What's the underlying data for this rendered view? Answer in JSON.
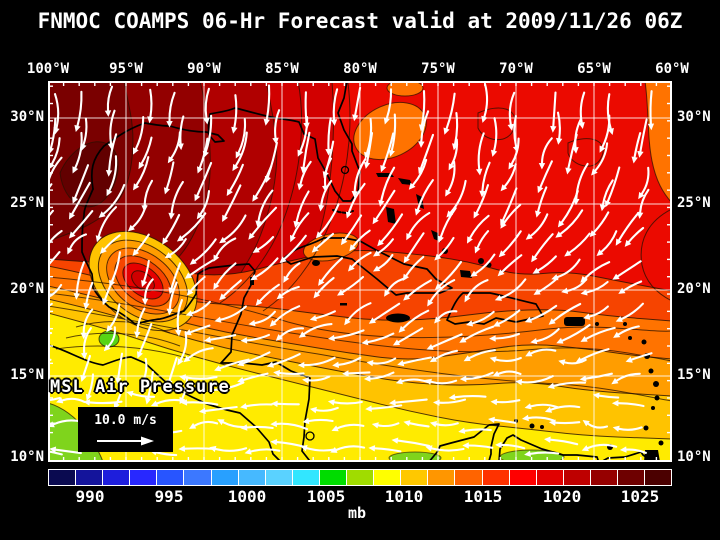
{
  "title": "FNMOC COAMPS 06-Hr Forecast valid at 2009/11/26 06Z",
  "map": {
    "field_label": "MSL Air Pressure",
    "wind_scale_label": "10.0 m/s",
    "lon_labels": [
      "100°W",
      "95°W",
      "90°W",
      "85°W",
      "80°W",
      "75°W",
      "70°W",
      "65°W",
      "60°W"
    ],
    "lat_labels": [
      "30°N",
      "25°N",
      "20°N",
      "15°N",
      "10°N"
    ],
    "grid_color": "#ffffff",
    "coast_color": "#000000",
    "wind_arrow_color": "#ffffff"
  },
  "colorbar": {
    "unit": "mb",
    "tick_labels": [
      "990",
      "995",
      "1000",
      "1005",
      "1010",
      "1015",
      "1020",
      "1025"
    ],
    "cell_colors": [
      "#0a0a50",
      "#14149b",
      "#1e1edc",
      "#2828ff",
      "#2855ff",
      "#3c78ff",
      "#28a0ff",
      "#46b9ff",
      "#5ad2ff",
      "#32e6ff",
      "#00dc00",
      "#a0dc00",
      "#ffff00",
      "#ffc800",
      "#ff9600",
      "#ff6400",
      "#ff3200",
      "#ff0000",
      "#e10000",
      "#be0000",
      "#960000",
      "#6e0000",
      "#4b0000"
    ]
  },
  "field_palette": {
    "bright_red": "#eb0a00",
    "mid_red": "#d20000",
    "dark_red": "#b00000",
    "darker_red": "#930000",
    "deep_red": "#7a0000",
    "deepest_red": "#620000",
    "red_orange": "#f64400",
    "orange": "#ff7300",
    "amber": "#ff9d00",
    "gold": "#ffc300",
    "yellow": "#ffeb00",
    "green": "#7fd41c",
    "contour": "#251000"
  }
}
